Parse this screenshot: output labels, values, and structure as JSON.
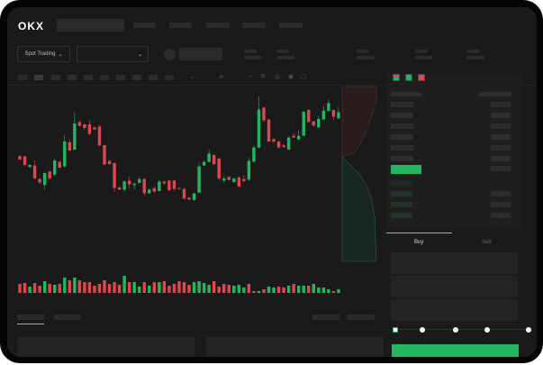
{
  "header": {
    "logo": "OKX"
  },
  "toolbar": {
    "market_selector": "Spot Trading",
    "chevron": "⌄"
  },
  "trade_panel": {
    "tabs": [
      "Buy",
      "Sell"
    ],
    "active_tab": "Buy",
    "slider_percent": 0,
    "slider_stops": [
      0,
      25,
      50,
      75,
      100
    ]
  },
  "colors": {
    "up": "#22b660",
    "down": "#e0474c",
    "background": "#1a1a1a",
    "placeholder": "#2b2b2b"
  },
  "chart_data": {
    "type": "candlestick",
    "ohlc": [
      [
        43,
        44,
        40,
        40
      ],
      [
        42.7,
        43.5,
        34.5,
        35.2
      ],
      [
        33.3,
        35.5,
        33,
        35.2
      ],
      [
        34.7,
        39,
        22.5,
        23.2
      ],
      [
        22.7,
        23.5,
        18,
        19.5
      ],
      [
        17.3,
        28.5,
        13.5,
        28
      ],
      [
        29.3,
        30,
        22,
        23.2
      ],
      [
        26.7,
        40.5,
        25.5,
        39.2
      ],
      [
        38,
        39,
        32,
        32.8
      ],
      [
        33.9,
        62,
        33,
        56
      ],
      [
        55.2,
        58,
        47.5,
        48
      ],
      [
        48.8,
        82,
        48,
        72
      ],
      [
        73.3,
        74.5,
        69,
        69.9
      ],
      [
        71.2,
        72,
        66.5,
        68
      ],
      [
        71.2,
        75,
        61.5,
        62.7
      ],
      [
        68.5,
        69,
        66,
        66.7
      ],
      [
        69.3,
        71,
        52,
        52.5
      ],
      [
        52.8,
        53,
        35,
        35.5
      ],
      [
        38.7,
        39.5,
        35,
        36
      ],
      [
        36.8,
        37.5,
        11.5,
        14.7
      ],
      [
        15.2,
        16.5,
        13,
        13.3
      ],
      [
        13.3,
        21.5,
        11.5,
        20.5
      ],
      [
        21.3,
        25,
        14.5,
        17.9
      ],
      [
        17.3,
        19,
        13,
        18.7
      ],
      [
        19.2,
        24,
        19,
        22.7
      ],
      [
        22.7,
        23.5,
        8,
        10.1
      ],
      [
        10.1,
        14,
        9,
        13.3
      ],
      [
        14.7,
        15.5,
        10.5,
        11.5
      ],
      [
        12,
        21.5,
        12,
        20.5
      ],
      [
        20.5,
        21,
        18,
        18.7
      ],
      [
        21.3,
        22,
        11.5,
        12.8
      ],
      [
        21.3,
        22,
        12.5,
        13.9
      ],
      [
        14.7,
        15.5,
        13.5,
        13.9
      ],
      [
        13.9,
        15,
        4.5,
        5.3
      ],
      [
        6.1,
        7,
        4,
        4.5
      ],
      [
        4,
        10.5,
        3.5,
        9.9
      ],
      [
        10.7,
        37,
        10,
        33.9
      ],
      [
        34.7,
        39,
        34,
        37.9
      ],
      [
        37.9,
        49,
        37.5,
        45.3
      ],
      [
        44,
        45,
        35,
        36
      ],
      [
        40.8,
        42,
        21.5,
        23.2
      ],
      [
        21.3,
        25,
        19.5,
        23.2
      ],
      [
        24.5,
        25,
        21.5,
        21.9
      ],
      [
        20,
        23.5,
        19.5,
        23.2
      ],
      [
        24,
        25,
        15.5,
        16
      ],
      [
        22.7,
        26,
        20,
        20.8
      ],
      [
        22.1,
        41.5,
        21,
        38.7
      ],
      [
        38.1,
        52,
        37.5,
        50.7
      ],
      [
        50.7,
        96,
        50,
        84.5
      ],
      [
        86.1,
        87,
        73,
        74.7
      ],
      [
        75.5,
        76,
        56,
        56
      ],
      [
        58.1,
        58.5,
        54,
        56
      ],
      [
        56,
        57,
        50,
        50.7
      ],
      [
        52.5,
        53.5,
        50,
        51.2
      ],
      [
        48.8,
        60.5,
        48.5,
        59.5
      ],
      [
        61.1,
        63.5,
        59,
        59.5
      ],
      [
        57.9,
        66,
        57.5,
        61.1
      ],
      [
        61.1,
        83,
        61,
        82.4
      ],
      [
        84,
        84.5,
        72.5,
        73.3
      ],
      [
        73.9,
        74.5,
        69.5,
        70.1
      ],
      [
        68.5,
        78.5,
        68,
        76
      ],
      [
        75.5,
        88,
        75,
        83.5
      ],
      [
        83.2,
        93.5,
        82.5,
        90.1
      ],
      [
        84,
        84.5,
        75,
        78.1
      ],
      [
        76.5,
        86.5,
        76,
        81.9
      ]
    ],
    "volume": [
      10,
      11,
      7,
      11,
      8,
      13,
      10,
      9,
      10,
      17,
      14,
      17,
      14,
      12,
      12,
      8,
      10,
      14,
      10,
      12,
      9,
      19,
      12,
      12,
      7,
      12,
      8,
      12,
      12,
      13,
      8,
      10,
      13,
      12,
      9,
      12,
      13,
      11,
      9,
      13,
      7,
      10,
      9,
      8,
      9,
      6,
      10,
      2,
      2,
      4,
      7,
      6,
      7,
      6,
      8,
      10,
      8,
      8,
      8,
      10,
      6,
      6,
      4,
      2,
      4
    ],
    "volume_colors": [
      "r",
      "r",
      "g",
      "r",
      "r",
      "g",
      "r",
      "g",
      "r",
      "g",
      "r",
      "g",
      "r",
      "r",
      "r",
      "r",
      "r",
      "r",
      "r",
      "r",
      "r",
      "g",
      "r",
      "g",
      "g",
      "r",
      "g",
      "r",
      "g",
      "r",
      "r",
      "r",
      "r",
      "r",
      "r",
      "g",
      "g",
      "g",
      "g",
      "r",
      "r",
      "r",
      "r",
      "g",
      "g",
      "g",
      "r",
      "r",
      "g",
      "r",
      "g",
      "g",
      "r",
      "r",
      "g",
      "r",
      "g",
      "g",
      "r",
      "g",
      "g",
      "g",
      "g",
      "r",
      "g"
    ],
    "ylim": [
      0,
      100
    ],
    "grid": true
  }
}
